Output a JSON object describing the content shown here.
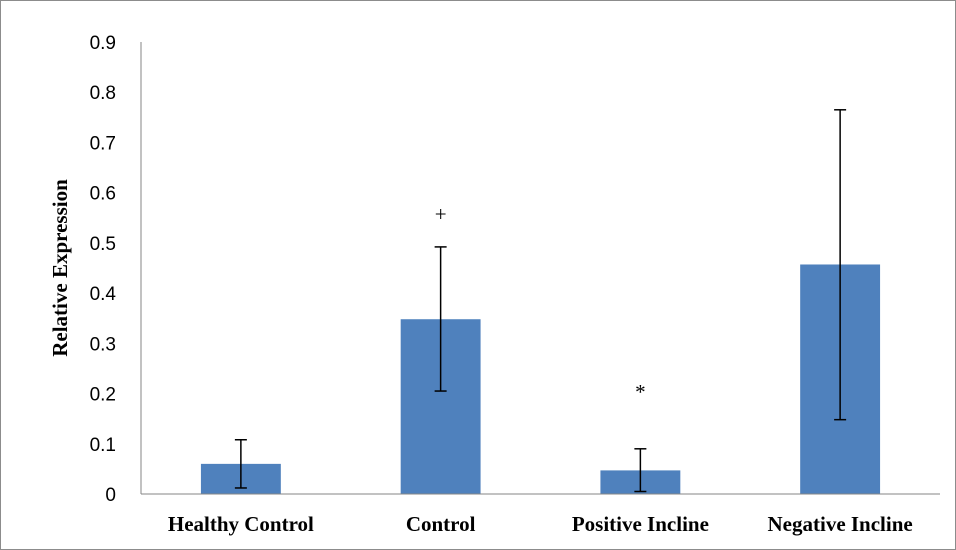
{
  "chart_data": {
    "type": "bar",
    "title": "",
    "xlabel": "",
    "ylabel": "Relative Expression",
    "ylim": [
      0,
      0.9
    ],
    "yticks": [
      "0",
      "0.1",
      "0.2",
      "0.3",
      "0.4",
      "0.5",
      "0.6",
      "0.7",
      "0.8",
      "0.9"
    ],
    "categories": [
      "Healthy Control",
      "Control",
      "Positive Incline",
      "Negative Incline"
    ],
    "values": [
      0.06,
      0.348,
      0.047,
      0.457
    ],
    "error_low": [
      0.012,
      0.205,
      0.005,
      0.148
    ],
    "error_high": [
      0.108,
      0.492,
      0.09,
      0.765
    ],
    "annotations": [
      {
        "category": "Control",
        "text": "+",
        "y": 0.56
      },
      {
        "category": "Positive Incline",
        "text": "*",
        "y": 0.205
      }
    ],
    "bar_color": "#4f81bd",
    "grid": false,
    "legend": "none"
  }
}
